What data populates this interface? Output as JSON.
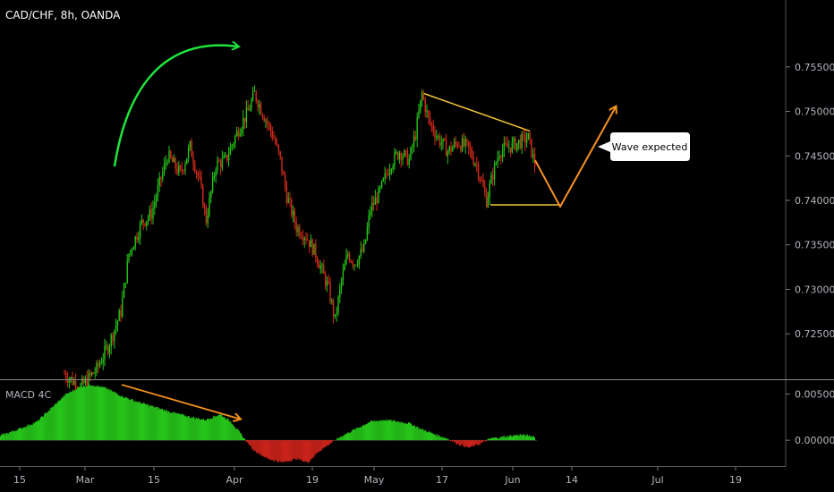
{
  "header": {
    "title": "CAD/CHF, 8h, OANDA"
  },
  "macd": {
    "title": "MACD 4C"
  },
  "annotation": {
    "callout": "Wave expected"
  },
  "colors": {
    "up": "#26c41a",
    "down": "#d42b1a",
    "macd_up": "#26c41a",
    "macd_down": "#c8231b",
    "green_arrow": "#1fe33b",
    "orange": "#f7931e",
    "yellow": "#f5c637",
    "white": "#ffffff"
  },
  "chart_data": [
    {
      "type": "candlestick",
      "title": "CAD/CHF, 8h, OANDA",
      "yaxis": {
        "ticks": [
          "0.75500",
          "0.75000",
          "0.74500",
          "0.74000",
          "0.73500",
          "0.73000",
          "0.72500"
        ],
        "tick_values": [
          0.755,
          0.75,
          0.745,
          0.74,
          0.735,
          0.73,
          0.725
        ],
        "ylim": [
          0.7208,
          0.7595
        ]
      },
      "xaxis": {
        "ticks": [
          "15",
          "Mar",
          "15",
          "Apr",
          "19",
          "May",
          "17",
          "Jun",
          "14",
          "Jul",
          "19"
        ]
      },
      "path": [
        [
          0,
          0.7205
        ],
        [
          10,
          0.719
        ],
        [
          20,
          0.721
        ],
        [
          28,
          0.724
        ],
        [
          35,
          0.7275
        ],
        [
          40,
          0.734
        ],
        [
          48,
          0.7375
        ],
        [
          54,
          0.7385
        ],
        [
          58,
          0.7412
        ],
        [
          64,
          0.745
        ],
        [
          72,
          0.743
        ],
        [
          78,
          0.746
        ],
        [
          84,
          0.742
        ],
        [
          88,
          0.7378
        ],
        [
          94,
          0.744
        ],
        [
          100,
          0.7445
        ],
        [
          108,
          0.748
        ],
        [
          114,
          0.75
        ],
        [
          118,
          0.752
        ],
        [
          124,
          0.7495
        ],
        [
          130,
          0.747
        ],
        [
          134,
          0.7445
        ],
        [
          138,
          0.7405
        ],
        [
          144,
          0.737
        ],
        [
          150,
          0.736
        ],
        [
          156,
          0.734
        ],
        [
          160,
          0.732
        ],
        [
          164,
          0.73
        ],
        [
          168,
          0.7265
        ],
        [
          172,
          0.731
        ],
        [
          176,
          0.734
        ],
        [
          180,
          0.733
        ],
        [
          186,
          0.7345
        ],
        [
          190,
          0.739
        ],
        [
          196,
          0.741
        ],
        [
          202,
          0.744
        ],
        [
          208,
          0.7455
        ],
        [
          214,
          0.7445
        ],
        [
          218,
          0.7475
        ],
        [
          222,
          0.752
        ],
        [
          226,
          0.749
        ],
        [
          232,
          0.747
        ],
        [
          238,
          0.7455
        ],
        [
          244,
          0.7465
        ],
        [
          250,
          0.746
        ],
        [
          256,
          0.744
        ],
        [
          262,
          0.74
        ],
        [
          266,
          0.743
        ],
        [
          270,
          0.7455
        ],
        [
          276,
          0.746
        ],
        [
          282,
          0.7465
        ],
        [
          288,
          0.747
        ],
        [
          292,
          0.744
        ]
      ],
      "annotations": {
        "projection": [
          [
            0.7445,
            0
          ],
          [
            0.7393,
            14
          ],
          [
            0.7505,
            28
          ]
        ],
        "resistance": [
          0.752,
          0.7478
        ],
        "support": 0.7395
      }
    },
    {
      "type": "bar",
      "title": "MACD 4C",
      "yaxis": {
        "ticks": [
          "0.00500",
          "0.00000"
        ],
        "tick_values": [
          0.005,
          0.0
        ],
        "ylim": [
          -0.0025,
          0.0062
        ]
      },
      "path": [
        [
          0,
          0.0005
        ],
        [
          10,
          0.0012
        ],
        [
          20,
          0.002
        ],
        [
          28,
          0.0035
        ],
        [
          36,
          0.005
        ],
        [
          44,
          0.0058
        ],
        [
          50,
          0.006
        ],
        [
          58,
          0.0056
        ],
        [
          66,
          0.0048
        ],
        [
          74,
          0.0042
        ],
        [
          84,
          0.0036
        ],
        [
          94,
          0.003
        ],
        [
          104,
          0.0025
        ],
        [
          112,
          0.0022
        ],
        [
          120,
          0.0028
        ],
        [
          126,
          0.002
        ],
        [
          132,
          0.0005
        ],
        [
          138,
          -0.001
        ],
        [
          146,
          -0.002
        ],
        [
          154,
          -0.0024
        ],
        [
          162,
          -0.002
        ],
        [
          168,
          -0.0024
        ],
        [
          174,
          -0.0012
        ],
        [
          180,
          -0.0004
        ],
        [
          186,
          0.0004
        ],
        [
          194,
          0.0012
        ],
        [
          202,
          0.002
        ],
        [
          210,
          0.0022
        ],
        [
          218,
          0.002
        ],
        [
          224,
          0.0018
        ],
        [
          230,
          0.0012
        ],
        [
          238,
          0.0006
        ],
        [
          244,
          0.0002
        ],
        [
          250,
          -0.0004
        ],
        [
          256,
          -0.0008
        ],
        [
          262,
          -0.0004
        ],
        [
          268,
          0.0002
        ],
        [
          276,
          0.0004
        ],
        [
          284,
          0.0006
        ],
        [
          292,
          0.0004
        ]
      ],
      "annotations": {
        "divergence": [
          0.006,
          0.0023
        ]
      }
    }
  ]
}
